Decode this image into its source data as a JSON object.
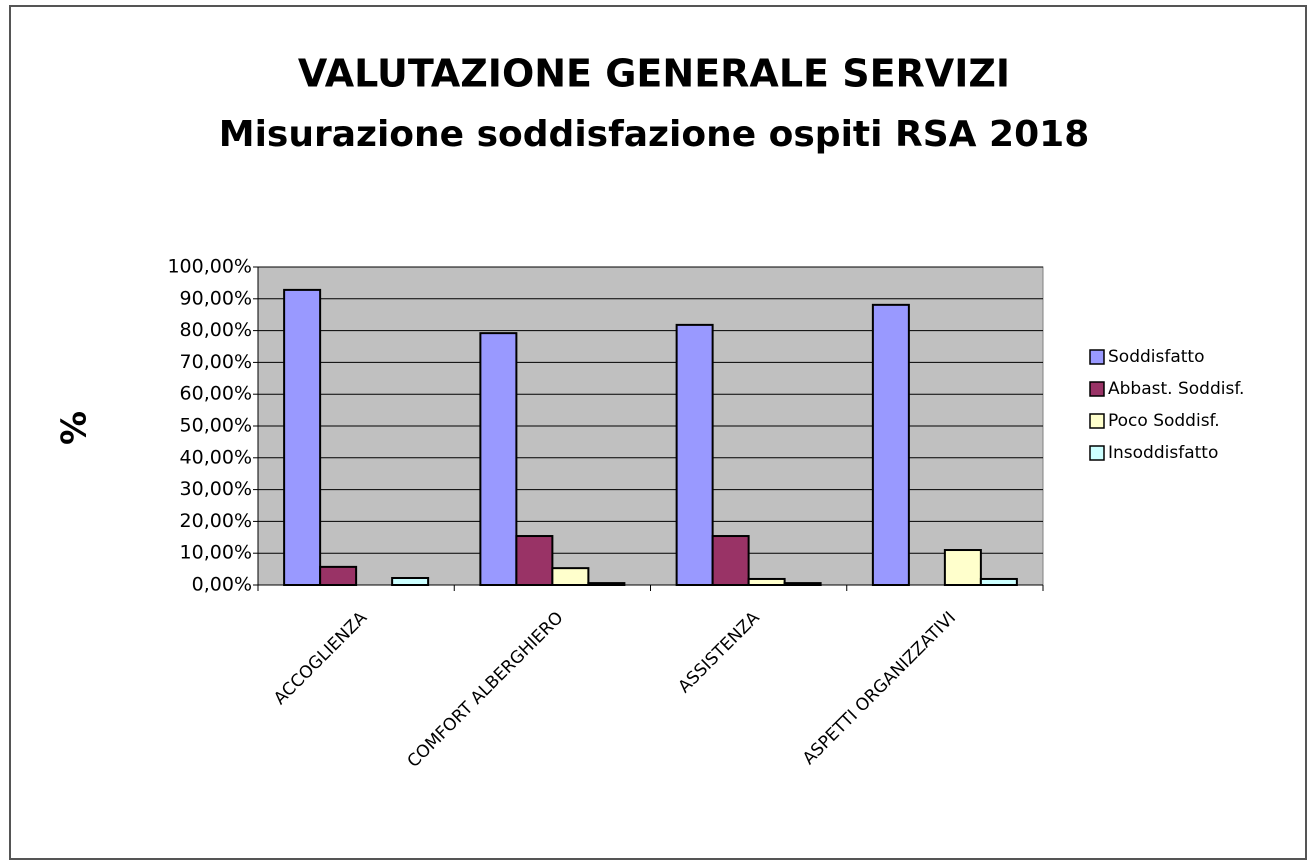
{
  "chart_data": {
    "type": "bar",
    "title": "VALUTAZIONE GENERALE SERVIZI",
    "subtitle": "Misurazione soddisfazione ospiti RSA 2018",
    "y_label": "%",
    "categories": [
      "ACCOGLIENZA",
      "COMFORT ALBERGHIERO",
      "ASSISTENZA",
      "ASPETTI ORGANIZZATIVI"
    ],
    "series": [
      {
        "name": "Soddisfatto",
        "color": "#9999ff",
        "values": [
          92.8,
          79.2,
          81.8,
          88.1
        ]
      },
      {
        "name": "Abbast. Soddisf.",
        "color": "#993366",
        "values": [
          5.7,
          15.4,
          15.4,
          0
        ]
      },
      {
        "name": "Poco Soddisf.",
        "color": "#ffffcc",
        "values": [
          0,
          5.3,
          1.9,
          11.0
        ]
      },
      {
        "name": "Insoddisfatto",
        "color": "#ccffff",
        "values": [
          2.2,
          0.6,
          0.6,
          1.9
        ]
      }
    ],
    "ylim": [
      0,
      100
    ],
    "yticks": [
      {
        "value": 0,
        "label": "0,00%"
      },
      {
        "value": 10,
        "label": "10,00%"
      },
      {
        "value": 20,
        "label": "20,00%"
      },
      {
        "value": 30,
        "label": "30,00%"
      },
      {
        "value": 40,
        "label": "40,00%"
      },
      {
        "value": 50,
        "label": "50,00%"
      },
      {
        "value": 60,
        "label": "60,00%"
      },
      {
        "value": 70,
        "label": "70,00%"
      },
      {
        "value": 80,
        "label": "80,00%"
      },
      {
        "value": 90,
        "label": "90,00%"
      },
      {
        "value": 100,
        "label": "100,00%"
      }
    ],
    "grid": true,
    "legend": "right",
    "plot_background": "#c0c0c0"
  }
}
